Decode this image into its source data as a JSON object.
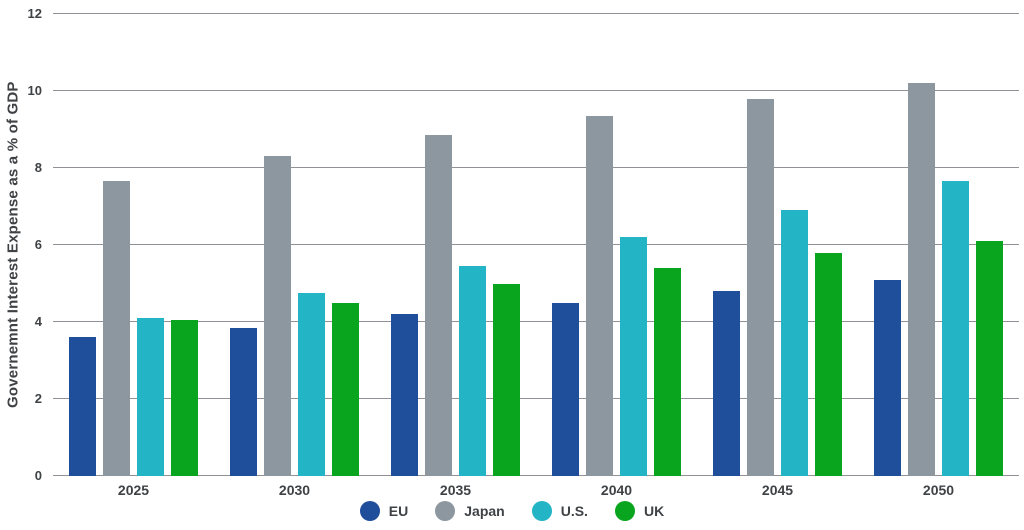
{
  "chart_data": {
    "type": "bar",
    "title": "",
    "xlabel": "",
    "ylabel": "Governemnt Interest Expense as a % of GDP",
    "ylim": [
      0,
      12
    ],
    "yticks": [
      0,
      2,
      4,
      6,
      8,
      10,
      12
    ],
    "grid": true,
    "legend_position": "bottom-center",
    "categories": [
      "2025",
      "2030",
      "2035",
      "2040",
      "2045",
      "2050"
    ],
    "series": [
      {
        "name": "EU",
        "color": "#1f4e9b",
        "values": [
          3.6,
          3.85,
          4.2,
          4.5,
          4.8,
          5.1
        ]
      },
      {
        "name": "Japan",
        "color": "#8d97a0",
        "values": [
          7.65,
          8.3,
          8.85,
          9.35,
          9.8,
          10.2
        ]
      },
      {
        "name": "U.S.",
        "color": "#23b5c5",
        "values": [
          4.1,
          4.75,
          5.45,
          6.2,
          6.9,
          7.65
        ]
      },
      {
        "name": "UK",
        "color": "#0aa51f",
        "values": [
          4.05,
          4.5,
          5.0,
          5.4,
          5.8,
          6.1
        ]
      }
    ],
    "gridline_color": "#8e9196",
    "text_color": "#3f4245"
  }
}
